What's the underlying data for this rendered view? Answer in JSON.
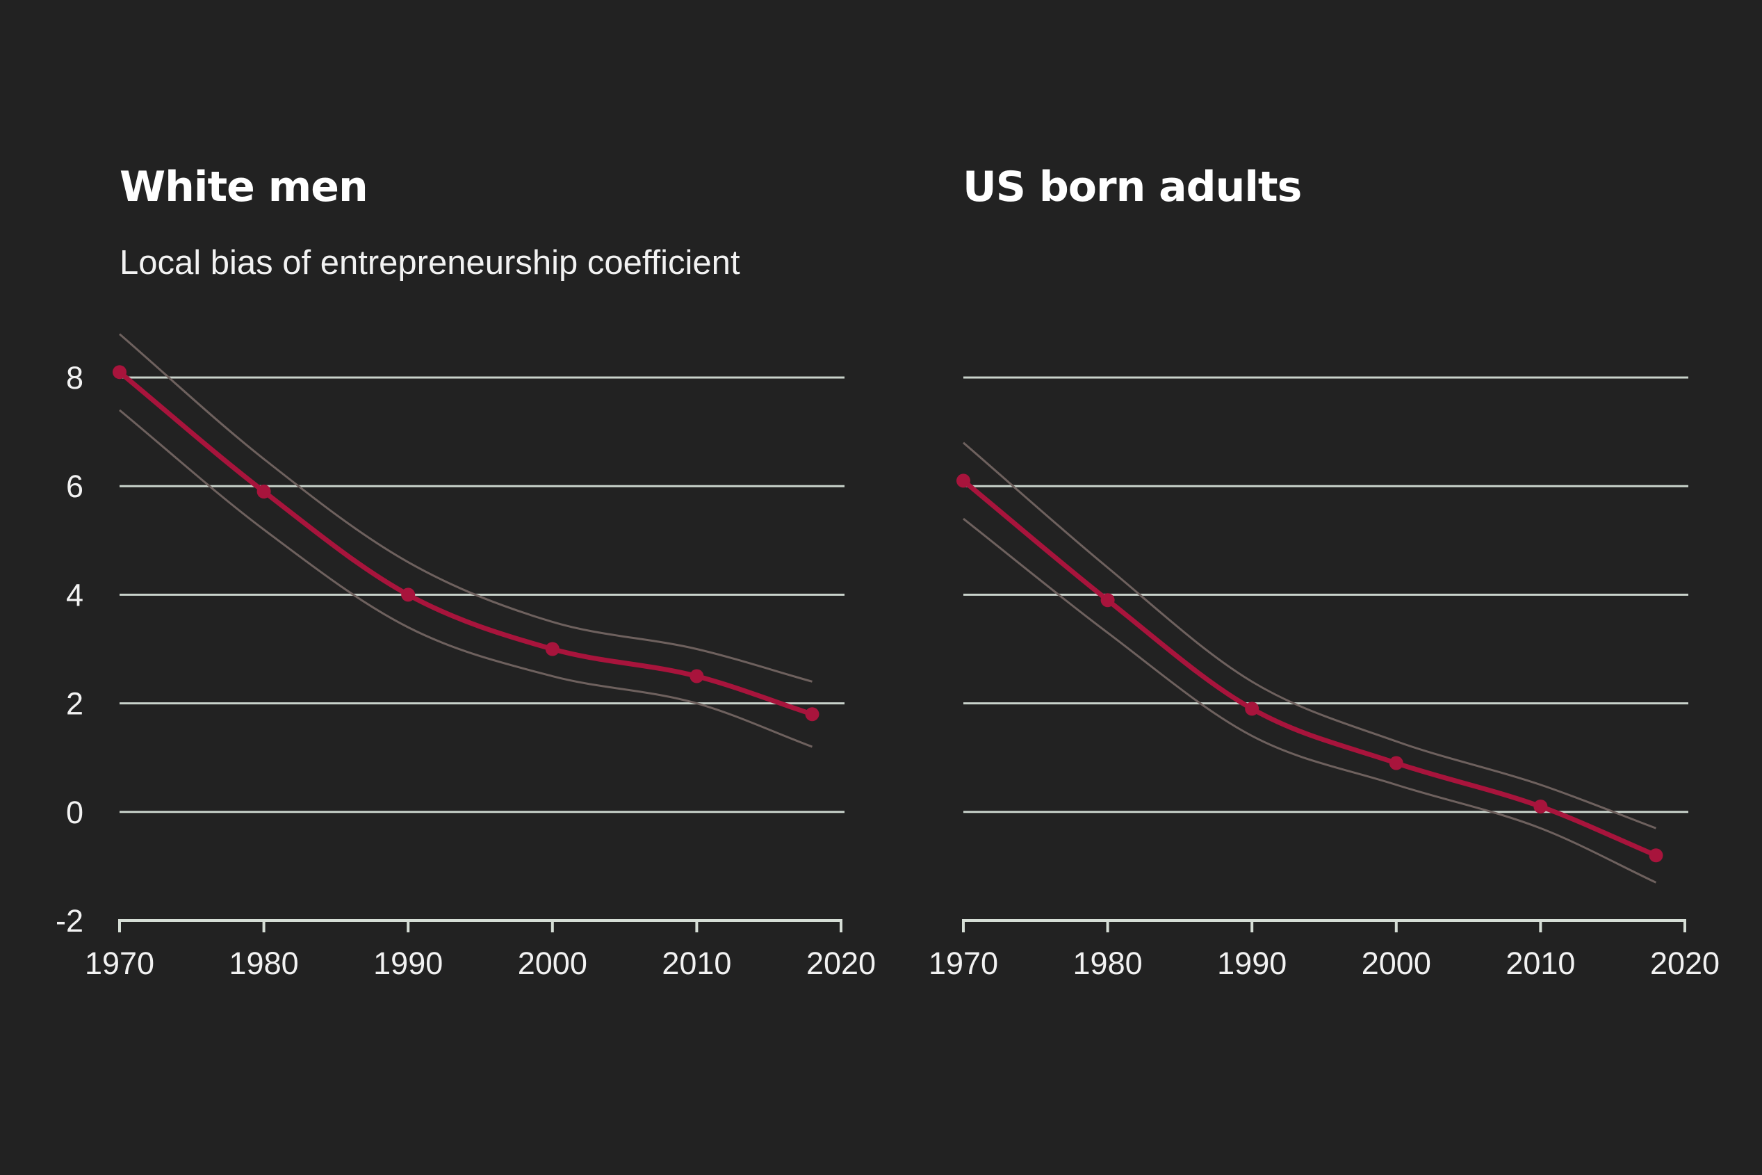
{
  "chart_data": [
    {
      "type": "line",
      "title": "White men",
      "subtitle": "Local bias of entrepreneurship coefficient",
      "xlabel": "",
      "ylabel": "",
      "xlim": [
        1970,
        2020
      ],
      "ylim": [
        -2,
        8
      ],
      "xticks": [
        1970,
        1980,
        1990,
        2000,
        2010,
        2020
      ],
      "yticks": [
        -2,
        0,
        2,
        4,
        6,
        8
      ],
      "grid": true,
      "x": [
        1970,
        1980,
        1990,
        2000,
        2010,
        2018
      ],
      "series": [
        {
          "values": [
            8.1,
            5.9,
            4.0,
            3.0,
            2.5,
            1.8
          ]
        }
      ],
      "upper_band": [
        8.8,
        6.5,
        4.6,
        3.5,
        3.0,
        2.4
      ],
      "lower_band": [
        7.4,
        5.2,
        3.4,
        2.5,
        2.0,
        1.2
      ]
    },
    {
      "type": "line",
      "title": "US born adults",
      "xlabel": "",
      "ylabel": "",
      "xlim": [
        1970,
        2020
      ],
      "ylim": [
        -2,
        8
      ],
      "xticks": [
        1970,
        1980,
        1990,
        2000,
        2010,
        2020
      ],
      "yticks": [
        -2,
        0,
        2,
        4,
        6,
        8
      ],
      "grid": true,
      "x": [
        1970,
        1980,
        1990,
        2000,
        2010,
        2018
      ],
      "series": [
        {
          "values": [
            6.1,
            3.9,
            1.9,
            0.9,
            0.1,
            -0.8
          ]
        }
      ],
      "upper_band": [
        6.8,
        4.5,
        2.4,
        1.3,
        0.5,
        -0.3
      ],
      "lower_band": [
        5.4,
        3.3,
        1.4,
        0.5,
        -0.3,
        -1.3
      ]
    }
  ],
  "colors": {
    "background": "#222222",
    "line": "#a8143c",
    "band": "#6e615e",
    "grid": "#c9d3cb",
    "axis": "#d6ded6",
    "text": "#f2f2f2",
    "title": "#ffffff"
  }
}
